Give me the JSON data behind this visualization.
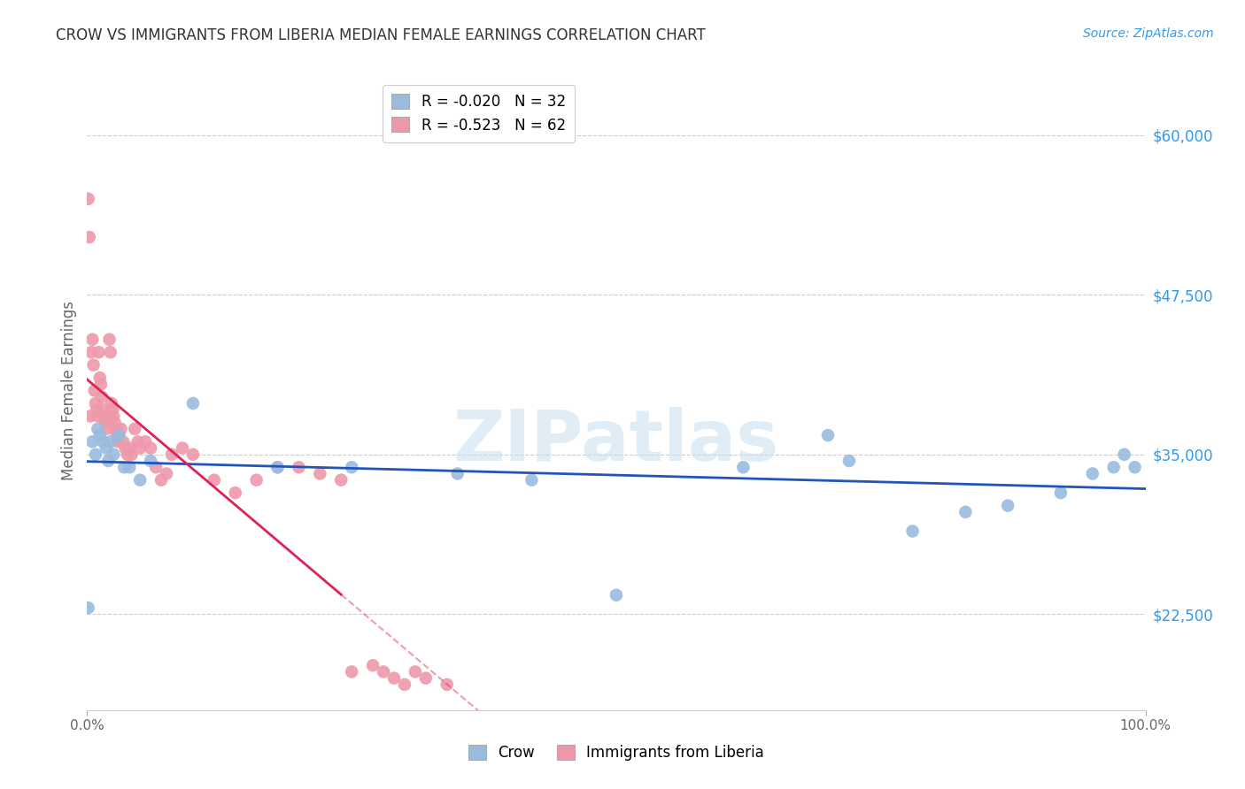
{
  "title": "CROW VS IMMIGRANTS FROM LIBERIA MEDIAN FEMALE EARNINGS CORRELATION CHART",
  "source": "Source: ZipAtlas.com",
  "ylabel": "Median Female Earnings",
  "xlim": [
    0,
    1.0
  ],
  "ylim": [
    15000,
    65000
  ],
  "yticks": [
    22500,
    35000,
    47500,
    60000
  ],
  "ytick_labels": [
    "$22,500",
    "$35,000",
    "$47,500",
    "$60,000"
  ],
  "background_color": "#ffffff",
  "crow_x": [
    0.001,
    0.005,
    0.008,
    0.01,
    0.012,
    0.015,
    0.018,
    0.02,
    0.022,
    0.025,
    0.03,
    0.035,
    0.04,
    0.05,
    0.06,
    0.1,
    0.18,
    0.25,
    0.35,
    0.42,
    0.5,
    0.62,
    0.7,
    0.72,
    0.78,
    0.83,
    0.87,
    0.92,
    0.95,
    0.97,
    0.98,
    0.99
  ],
  "crow_y": [
    23000,
    36000,
    35000,
    37000,
    36500,
    36000,
    35500,
    34500,
    36000,
    35000,
    36500,
    34000,
    34000,
    33000,
    34500,
    39000,
    34000,
    34000,
    33500,
    33000,
    24000,
    34000,
    36500,
    34500,
    29000,
    30500,
    31000,
    32000,
    33500,
    34000,
    35000,
    34000
  ],
  "liberia_x": [
    0.001,
    0.002,
    0.003,
    0.004,
    0.005,
    0.006,
    0.007,
    0.008,
    0.009,
    0.01,
    0.011,
    0.012,
    0.013,
    0.014,
    0.015,
    0.016,
    0.017,
    0.018,
    0.019,
    0.02,
    0.021,
    0.022,
    0.023,
    0.024,
    0.025,
    0.026,
    0.027,
    0.028,
    0.029,
    0.03,
    0.032,
    0.034,
    0.036,
    0.038,
    0.04,
    0.042,
    0.045,
    0.048,
    0.05,
    0.055,
    0.06,
    0.065,
    0.07,
    0.075,
    0.08,
    0.09,
    0.1,
    0.12,
    0.14,
    0.16,
    0.18,
    0.2,
    0.22,
    0.24,
    0.25,
    0.27,
    0.28,
    0.29,
    0.3,
    0.31,
    0.32,
    0.34
  ],
  "liberia_y": [
    55000,
    52000,
    38000,
    43000,
    44000,
    42000,
    40000,
    39000,
    38500,
    38000,
    43000,
    41000,
    40500,
    39500,
    38500,
    38000,
    37500,
    37000,
    37500,
    38000,
    44000,
    43000,
    39000,
    38500,
    38000,
    37500,
    37000,
    36500,
    36000,
    36500,
    37000,
    36000,
    35500,
    35000,
    35500,
    35000,
    37000,
    36000,
    35500,
    36000,
    35500,
    34000,
    33000,
    33500,
    35000,
    35500,
    35000,
    33000,
    32000,
    33000,
    34000,
    34000,
    33500,
    33000,
    18000,
    18500,
    18000,
    17500,
    17000,
    18000,
    17500,
    17000
  ],
  "crow_line_color": "#2255bb",
  "liberia_line_color": "#dd2255",
  "crow_scatter_color": "#99bbdd",
  "liberia_scatter_color": "#ee99aa",
  "crow_R": -0.02,
  "crow_N": 32,
  "liberia_R": -0.523,
  "liberia_N": 62
}
